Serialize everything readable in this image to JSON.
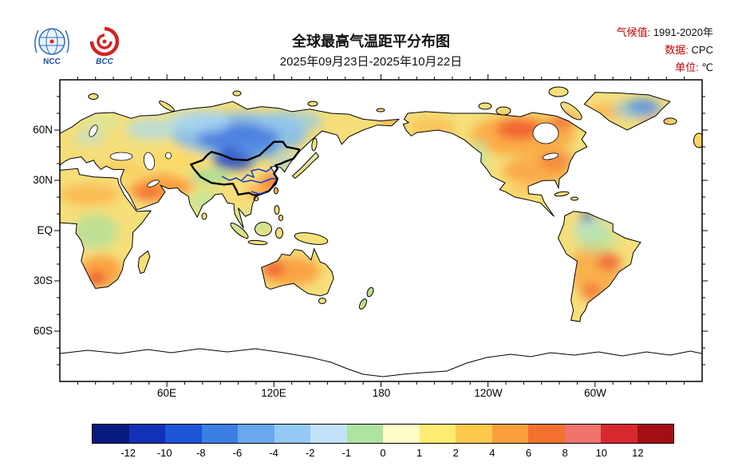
{
  "header": {
    "logos": [
      {
        "name": "NCC",
        "label": "NCC"
      },
      {
        "name": "BCC",
        "label": "BCC"
      }
    ],
    "title": "全球最高气温距平分布图",
    "date_range": "2025年09月23日-2025年10月22日",
    "meta": [
      {
        "label": "气候值:",
        "value": "1991-2020年"
      },
      {
        "label": "数据:",
        "value": "CPC"
      },
      {
        "label": "单位:",
        "value": "℃"
      }
    ]
  },
  "chart_data": {
    "type": "heatmap",
    "subtype": "filled-contour world map, equirectangular, Pacific-centered (0°E–360°E, 90S–90N)",
    "title": "全球最高气温距平分布图",
    "period": "2025-09-23 to 2025-10-22",
    "climatology": "1991-2020",
    "source": "CPC",
    "unit": "°C",
    "lat_tick_labels": [
      "60N",
      "30N",
      "EQ",
      "30S",
      "60S"
    ],
    "lon_tick_labels": [
      "60E",
      "120E",
      "180",
      "120W",
      "60W"
    ],
    "colorbar": {
      "tick_labels": [
        "-12",
        "-10",
        "-8",
        "-6",
        "-4",
        "-2",
        "-1",
        "0",
        "1",
        "2",
        "4",
        "6",
        "8",
        "10",
        "12"
      ],
      "colors": [
        "#08197f",
        "#1231b5",
        "#1c55d6",
        "#3b7fe3",
        "#69a8ef",
        "#93c9f4",
        "#c3e1f8",
        "#aee3a0",
        "#fdfcc8",
        "#ffec72",
        "#fdc84c",
        "#fb9e3b",
        "#f4702e",
        "#f0736c",
        "#d7282f",
        "#a50d14"
      ]
    },
    "highlighted_region": "China (thick black boundary, major rivers drawn in blue)",
    "anomaly_summary": [
      {
        "region": "Central/Northern Asia (Siberia, Mongolia, NW China)",
        "anomaly": "-2 to -8 (cold)"
      },
      {
        "region": "North America (Canada, central & eastern US)",
        "anomaly": "+2 to +6 (warm)"
      },
      {
        "region": "Greenland interior",
        "anomaly": "-4 to -10 cold core, warm coasts"
      },
      {
        "region": "Middle East / North Africa / Southern Africa",
        "anomaly": "+1 to +4 (warm)"
      },
      {
        "region": "Australia",
        "anomaly": "+1 to +4 (warm), red cores in west/center"
      },
      {
        "region": "South America (most)",
        "anomaly": "+1 to +4 (warm); NW coast cold spot"
      },
      {
        "region": "Southeastern China",
        "anomaly": "+2 to +4 (warm)"
      },
      {
        "region": "Europe",
        "anomaly": "-1 to +2 (mixed)"
      },
      {
        "region": "India / Congo / SE Asia / New Zealand",
        "anomaly": "-1 to +1 (near normal, slightly cool)"
      }
    ]
  }
}
